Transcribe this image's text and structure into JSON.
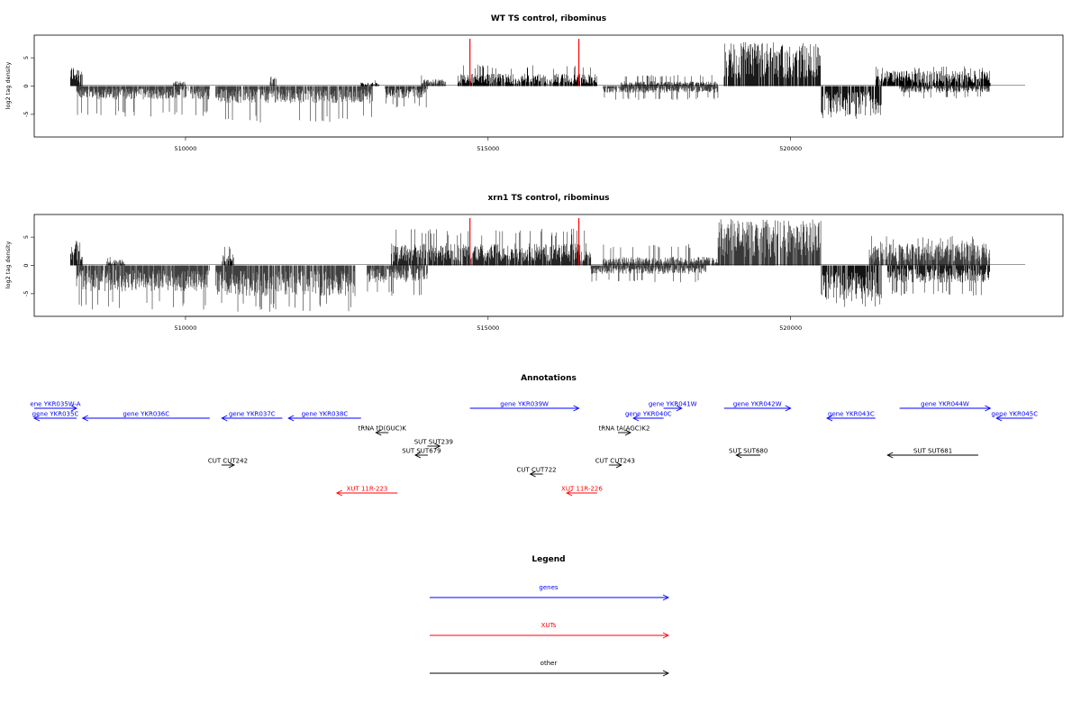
{
  "colors": {
    "gene": "#0000ff",
    "xut": "#ff0000",
    "other": "#000000",
    "marker": "#ff0000",
    "bars": "#000000"
  },
  "chart_data": [
    {
      "type": "bar",
      "title": "WT TS control, ribominus",
      "ylabel": "log2 tag density",
      "xlim": [
        507500,
        524500
      ],
      "ylim": [
        -9,
        9
      ],
      "xticks": [
        510000,
        515000,
        520000
      ],
      "yticks": [
        5,
        0,
        -5
      ],
      "markers": [
        514700,
        516500
      ],
      "profile": [
        {
          "start": 508100,
          "end": 508300,
          "strand": "+",
          "mean": 2.2,
          "max": 3.2
        },
        {
          "start": 508200,
          "end": 510400,
          "strand": "-",
          "mean": 1.4,
          "max": 5.5
        },
        {
          "start": 509800,
          "end": 510000,
          "strand": "+",
          "mean": 0.5,
          "max": 1.5
        },
        {
          "start": 510500,
          "end": 513100,
          "strand": "-",
          "mean": 1.8,
          "max": 6.5
        },
        {
          "start": 511400,
          "end": 511500,
          "strand": "+",
          "mean": 1.0,
          "max": 2.2
        },
        {
          "start": 512900,
          "end": 513200,
          "strand": "+",
          "mean": 0.4,
          "max": 1.0
        },
        {
          "start": 513300,
          "end": 514000,
          "strand": "-",
          "mean": 1.3,
          "max": 3.8
        },
        {
          "start": 513900,
          "end": 514300,
          "strand": "+",
          "mean": 0.7,
          "max": 2.0
        },
        {
          "start": 514500,
          "end": 516800,
          "strand": "+",
          "mean": 1.3,
          "max": 3.8
        },
        {
          "start": 516900,
          "end": 518800,
          "strand": "-",
          "mean": 0.7,
          "max": 2.5
        },
        {
          "start": 517200,
          "end": 518800,
          "strand": "+",
          "mean": 0.5,
          "max": 2.0
        },
        {
          "start": 518900,
          "end": 520500,
          "strand": "+",
          "mean": 4.6,
          "max": 7.8
        },
        {
          "start": 520500,
          "end": 521500,
          "strand": "-",
          "mean": 3.0,
          "max": 6.0
        },
        {
          "start": 521400,
          "end": 523300,
          "strand": "+",
          "mean": 1.6,
          "max": 3.5
        },
        {
          "start": 521800,
          "end": 523300,
          "strand": "-",
          "mean": 0.7,
          "max": 2.2
        }
      ]
    },
    {
      "type": "bar",
      "title": "xrn1 TS control, ribominus",
      "ylabel": "log2 tag density",
      "xlim": [
        507500,
        524500
      ],
      "ylim": [
        -9,
        9
      ],
      "xticks": [
        510000,
        515000,
        520000
      ],
      "yticks": [
        5,
        0,
        -5
      ],
      "markers": [
        514700,
        516500
      ],
      "profile": [
        {
          "start": 508100,
          "end": 508300,
          "strand": "+",
          "mean": 2.5,
          "max": 4.8
        },
        {
          "start": 508200,
          "end": 510400,
          "strand": "-",
          "mean": 2.7,
          "max": 7.8
        },
        {
          "start": 508700,
          "end": 509000,
          "strand": "+",
          "mean": 0.6,
          "max": 1.5
        },
        {
          "start": 510500,
          "end": 512800,
          "strand": "-",
          "mean": 3.2,
          "max": 8.2
        },
        {
          "start": 510600,
          "end": 510800,
          "strand": "+",
          "mean": 1.2,
          "max": 3.5
        },
        {
          "start": 513000,
          "end": 514000,
          "strand": "-",
          "mean": 1.8,
          "max": 5.5
        },
        {
          "start": 513400,
          "end": 516700,
          "strand": "+",
          "mean": 2.3,
          "max": 6.5
        },
        {
          "start": 516700,
          "end": 518600,
          "strand": "-",
          "mean": 0.9,
          "max": 3.0
        },
        {
          "start": 516900,
          "end": 518800,
          "strand": "+",
          "mean": 0.9,
          "max": 3.8
        },
        {
          "start": 518800,
          "end": 520500,
          "strand": "+",
          "mean": 4.8,
          "max": 8.2
        },
        {
          "start": 520500,
          "end": 521500,
          "strand": "-",
          "mean": 3.6,
          "max": 7.5
        },
        {
          "start": 521300,
          "end": 523300,
          "strand": "+",
          "mean": 2.3,
          "max": 5.2
        },
        {
          "start": 521600,
          "end": 523300,
          "strand": "-",
          "mean": 1.8,
          "max": 5.5
        }
      ]
    }
  ],
  "annotations": {
    "title": "Annotations",
    "features": [
      {
        "label": "ene YKR035W-A",
        "type": "gene",
        "start": 507500,
        "end": 508200,
        "dir": "+",
        "row": 0
      },
      {
        "label": "gene YKR035C",
        "type": "gene",
        "start": 507500,
        "end": 508200,
        "dir": "-",
        "row": 1
      },
      {
        "label": "gene YKR036C",
        "type": "gene",
        "start": 508300,
        "end": 510400,
        "dir": "-",
        "row": 1
      },
      {
        "label": "gene YKR037C",
        "type": "gene",
        "start": 510600,
        "end": 511600,
        "dir": "-",
        "row": 1
      },
      {
        "label": "gene YKR038C",
        "type": "gene",
        "start": 511700,
        "end": 512900,
        "dir": "-",
        "row": 1
      },
      {
        "label": "gene YKR039W",
        "type": "gene",
        "start": 514700,
        "end": 516500,
        "dir": "+",
        "row": 0
      },
      {
        "label": "gene YKR041W",
        "type": "gene",
        "start": 517900,
        "end": 518200,
        "dir": "+",
        "row": 0
      },
      {
        "label": "gene YKR040C",
        "type": "gene",
        "start": 517400,
        "end": 517900,
        "dir": "-",
        "row": 1
      },
      {
        "label": "gene YKR042W",
        "type": "gene",
        "start": 518900,
        "end": 520000,
        "dir": "+",
        "row": 0
      },
      {
        "label": "gene YKR043C",
        "type": "gene",
        "start": 520600,
        "end": 521400,
        "dir": "-",
        "row": 1
      },
      {
        "label": "gene YKR044W",
        "type": "gene",
        "start": 521800,
        "end": 523300,
        "dir": "+",
        "row": 0
      },
      {
        "label": "gene YKR045C",
        "type": "gene",
        "start": 523400,
        "end": 524000,
        "dir": "-",
        "row": 1
      },
      {
        "label": "tRNA tD(GUC)K",
        "type": "other",
        "start": 513200,
        "end": 513300,
        "dir": "-",
        "row": 2
      },
      {
        "label": "tRNA tA(AGC)K2",
        "type": "other",
        "start": 517200,
        "end": 517300,
        "dir": "+",
        "row": 2
      },
      {
        "label": "SUT SUT239",
        "type": "other",
        "start": 514000,
        "end": 514200,
        "dir": "+",
        "row": 3
      },
      {
        "label": "SUT SUT679",
        "type": "other",
        "start": 513800,
        "end": 514000,
        "dir": "-",
        "row": 4
      },
      {
        "label": "SUT SUT680",
        "type": "other",
        "start": 519100,
        "end": 519500,
        "dir": "-",
        "row": 4
      },
      {
        "label": "SUT SUT681",
        "type": "other",
        "start": 521600,
        "end": 523100,
        "dir": "-",
        "row": 4
      },
      {
        "label": "CUT CUT242",
        "type": "other",
        "start": 510600,
        "end": 510800,
        "dir": "+",
        "row": 5
      },
      {
        "label": "CUT CUT243",
        "type": "other",
        "start": 517000,
        "end": 517200,
        "dir": "+",
        "row": 5
      },
      {
        "label": "CUT CUT722",
        "type": "other",
        "start": 515700,
        "end": 515900,
        "dir": "-",
        "row": 6
      },
      {
        "label": "XUT 11R-223",
        "type": "xut",
        "start": 512500,
        "end": 513500,
        "dir": "-",
        "row": 7
      },
      {
        "label": "XUT 11R-226",
        "type": "xut",
        "start": 516300,
        "end": 516800,
        "dir": "-",
        "row": 7
      }
    ]
  },
  "legend": {
    "title": "Legend",
    "items": [
      {
        "label": "genes",
        "type": "gene"
      },
      {
        "label": "XUTs",
        "type": "xut"
      },
      {
        "label": "other",
        "type": "other"
      }
    ]
  }
}
